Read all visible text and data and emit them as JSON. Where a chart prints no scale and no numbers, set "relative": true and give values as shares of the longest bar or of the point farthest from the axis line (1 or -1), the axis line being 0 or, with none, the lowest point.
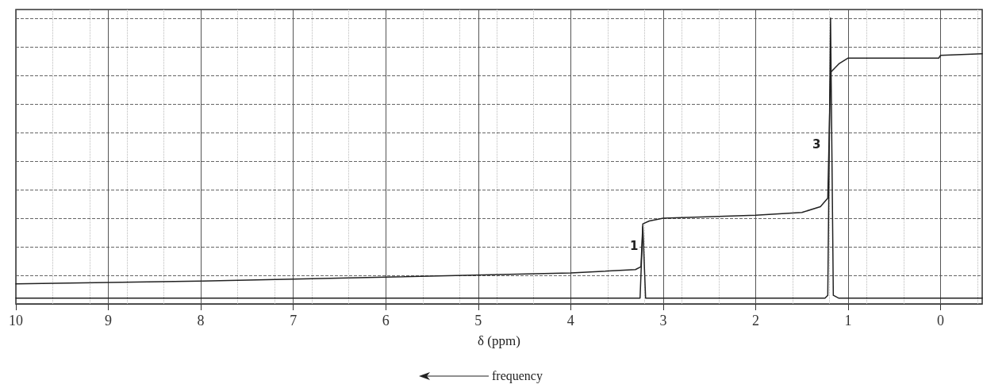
{
  "chart_data": {
    "type": "line",
    "relative": true,
    "xlabel": "δ (ppm)",
    "xlim": [
      10,
      -0.45
    ],
    "xticks": [
      10,
      9,
      8,
      7,
      6,
      5,
      4,
      3,
      2,
      1,
      0
    ],
    "grid": true,
    "marker": "none",
    "line_style": "solid",
    "series": [
      {
        "color": "#222222",
        "x": [
          10,
          3.25,
          3.22,
          3.19,
          1.25,
          1.22,
          1.19,
          1.16,
          1.1,
          -0.45
        ],
        "values": [
          0.02,
          0.02,
          0.27,
          0.02,
          0.02,
          0.03,
          1,
          0.03,
          0.02,
          0.02
        ]
      },
      {
        "color": "#222222",
        "x": [
          10,
          8,
          6,
          4,
          3.3,
          3.24,
          3.22,
          3.15,
          3.0,
          2,
          1.5,
          1.3,
          1.22,
          1.19,
          1.1,
          1.0,
          0.5,
          0.02,
          0,
          -0.45
        ],
        "values": [
          0.07,
          0.08,
          0.094,
          0.108,
          0.12,
          0.13,
          0.28,
          0.29,
          0.3,
          0.31,
          0.32,
          0.34,
          0.37,
          0.81,
          0.84,
          0.86,
          0.86,
          0.86,
          0.87,
          0.875
        ]
      }
    ],
    "annotations": [
      "1",
      "3",
      "frequency"
    ]
  }
}
